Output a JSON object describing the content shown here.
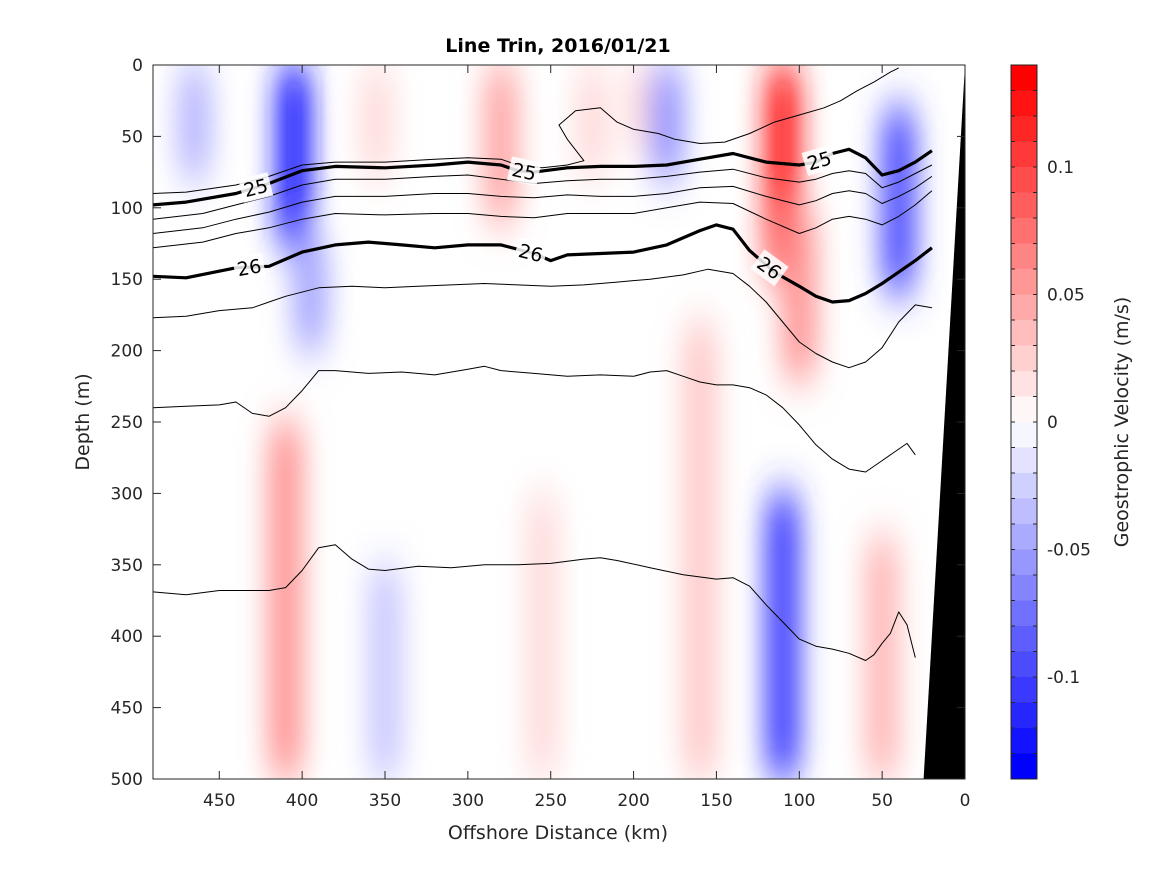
{
  "chart_data": {
    "type": "heatmap",
    "title": "Line Trin, 2016/01/21",
    "xlabel": "Offshore Distance (km)",
    "ylabel": "Depth (m)",
    "colorbar_label": "Geostrophic Velocity (m/s)",
    "x_reversed": true,
    "xlim": [
      0,
      490
    ],
    "ylim": [
      0,
      500
    ],
    "y_reversed": true,
    "x_ticks": [
      450,
      400,
      350,
      300,
      250,
      200,
      150,
      100,
      50,
      0
    ],
    "y_ticks": [
      0,
      50,
      100,
      150,
      200,
      250,
      300,
      350,
      400,
      450,
      500
    ],
    "colorbar": {
      "range": [
        -0.14,
        0.14
      ],
      "step": 0.01,
      "ticks": [
        0.1,
        0.05,
        0,
        -0.05,
        -0.1
      ],
      "tick_labels": [
        "0.1",
        "0.05",
        "0",
        "-0.05",
        "-0.1"
      ]
    },
    "velocity_features": [
      {
        "x": 465,
        "y0": 0,
        "y1": 80,
        "value": -0.04
      },
      {
        "x": 405,
        "y0": 0,
        "y1": 130,
        "value": -0.13
      },
      {
        "x": 395,
        "y0": 120,
        "y1": 200,
        "value": -0.05
      },
      {
        "x": 355,
        "y0": 0,
        "y1": 80,
        "value": 0.02
      },
      {
        "x": 280,
        "y0": 0,
        "y1": 110,
        "value": 0.05
      },
      {
        "x": 225,
        "y0": 0,
        "y1": 80,
        "value": 0.02
      },
      {
        "x": 195,
        "y0": 0,
        "y1": 60,
        "value": 0.02
      },
      {
        "x": 180,
        "y0": 0,
        "y1": 80,
        "value": -0.06
      },
      {
        "x": 110,
        "y0": 0,
        "y1": 150,
        "value": 0.13
      },
      {
        "x": 100,
        "y0": 100,
        "y1": 220,
        "value": 0.06
      },
      {
        "x": 40,
        "y0": 30,
        "y1": 160,
        "value": -0.1
      },
      {
        "x": 410,
        "y0": 250,
        "y1": 500,
        "value": 0.06
      },
      {
        "x": 350,
        "y0": 350,
        "y1": 500,
        "value": -0.03
      },
      {
        "x": 255,
        "y0": 300,
        "y1": 500,
        "value": 0.02
      },
      {
        "x": 110,
        "y0": 300,
        "y1": 500,
        "value": -0.11
      },
      {
        "x": 160,
        "y0": 180,
        "y1": 500,
        "value": 0.03
      },
      {
        "x": 50,
        "y0": 330,
        "y1": 500,
        "value": 0.04
      }
    ],
    "contours": [
      {
        "label": "25",
        "bold": true,
        "points": [
          [
            490,
            98
          ],
          [
            470,
            96
          ],
          [
            440,
            90
          ],
          [
            420,
            83
          ],
          [
            400,
            74
          ],
          [
            380,
            71
          ],
          [
            350,
            72
          ],
          [
            320,
            70
          ],
          [
            300,
            68
          ],
          [
            280,
            70
          ],
          [
            270,
            74
          ],
          [
            260,
            75
          ],
          [
            240,
            72
          ],
          [
            220,
            71
          ],
          [
            200,
            71
          ],
          [
            180,
            70
          ],
          [
            160,
            66
          ],
          [
            140,
            62
          ],
          [
            120,
            68
          ],
          [
            100,
            70
          ],
          [
            90,
            68
          ],
          [
            80,
            62
          ],
          [
            70,
            59
          ],
          [
            60,
            65
          ],
          [
            50,
            77
          ],
          [
            40,
            74
          ],
          [
            30,
            68
          ],
          [
            20,
            60
          ]
        ]
      },
      {
        "label": "26",
        "bold": true,
        "points": [
          [
            490,
            148
          ],
          [
            470,
            149
          ],
          [
            440,
            142
          ],
          [
            420,
            141
          ],
          [
            400,
            131
          ],
          [
            380,
            126
          ],
          [
            360,
            124
          ],
          [
            340,
            126
          ],
          [
            320,
            128
          ],
          [
            300,
            126
          ],
          [
            280,
            126
          ],
          [
            260,
            132
          ],
          [
            250,
            137
          ],
          [
            240,
            133
          ],
          [
            220,
            132
          ],
          [
            200,
            131
          ],
          [
            180,
            126
          ],
          [
            160,
            116
          ],
          [
            150,
            112
          ],
          [
            140,
            115
          ],
          [
            130,
            130
          ],
          [
            115,
            145
          ],
          [
            100,
            155
          ],
          [
            90,
            162
          ],
          [
            80,
            166
          ],
          [
            70,
            165
          ],
          [
            60,
            160
          ],
          [
            50,
            153
          ],
          [
            40,
            145
          ],
          [
            30,
            137
          ],
          [
            20,
            128
          ]
        ]
      },
      {
        "label": "",
        "bold": false,
        "points": [
          [
            490,
            90
          ],
          [
            470,
            89
          ],
          [
            440,
            84
          ],
          [
            420,
            78
          ],
          [
            400,
            70
          ],
          [
            380,
            68
          ],
          [
            350,
            68
          ],
          [
            320,
            66
          ],
          [
            300,
            65
          ],
          [
            280,
            66
          ],
          [
            270,
            70
          ],
          [
            255,
            72
          ],
          [
            240,
            70
          ],
          [
            230,
            67
          ],
          [
            240,
            52
          ],
          [
            245,
            42
          ],
          [
            235,
            32
          ],
          [
            220,
            30
          ],
          [
            210,
            40
          ],
          [
            200,
            45
          ],
          [
            185,
            48
          ],
          [
            175,
            52
          ],
          [
            160,
            55
          ],
          [
            145,
            54
          ],
          [
            130,
            48
          ],
          [
            115,
            40
          ],
          [
            100,
            35
          ],
          [
            85,
            30
          ],
          [
            75,
            25
          ],
          [
            65,
            18
          ],
          [
            55,
            12
          ],
          [
            45,
            5
          ],
          [
            40,
            2
          ]
        ]
      },
      {
        "label": "",
        "bold": false,
        "points": [
          [
            490,
            108
          ],
          [
            460,
            104
          ],
          [
            440,
            98
          ],
          [
            420,
            92
          ],
          [
            400,
            84
          ],
          [
            380,
            80
          ],
          [
            350,
            80
          ],
          [
            320,
            78
          ],
          [
            300,
            77
          ],
          [
            280,
            80
          ],
          [
            260,
            83
          ],
          [
            240,
            81
          ],
          [
            220,
            80
          ],
          [
            200,
            80
          ],
          [
            180,
            78
          ],
          [
            160,
            75
          ],
          [
            140,
            73
          ],
          [
            120,
            79
          ],
          [
            100,
            82
          ],
          [
            90,
            80
          ],
          [
            80,
            76
          ],
          [
            70,
            74
          ],
          [
            60,
            76
          ],
          [
            50,
            86
          ],
          [
            40,
            82
          ],
          [
            30,
            76
          ],
          [
            20,
            70
          ]
        ]
      },
      {
        "label": "",
        "bold": false,
        "points": [
          [
            490,
            118
          ],
          [
            460,
            114
          ],
          [
            440,
            108
          ],
          [
            420,
            103
          ],
          [
            400,
            96
          ],
          [
            380,
            92
          ],
          [
            350,
            92
          ],
          [
            320,
            90
          ],
          [
            300,
            90
          ],
          [
            280,
            92
          ],
          [
            260,
            93
          ],
          [
            240,
            91
          ],
          [
            220,
            92
          ],
          [
            200,
            92
          ],
          [
            180,
            90
          ],
          [
            160,
            86
          ],
          [
            140,
            85
          ],
          [
            120,
            92
          ],
          [
            100,
            98
          ],
          [
            90,
            95
          ],
          [
            80,
            90
          ],
          [
            70,
            88
          ],
          [
            60,
            90
          ],
          [
            50,
            97
          ],
          [
            40,
            92
          ],
          [
            30,
            86
          ],
          [
            20,
            78
          ]
        ]
      },
      {
        "label": "",
        "bold": false,
        "points": [
          [
            490,
            128
          ],
          [
            460,
            124
          ],
          [
            440,
            118
          ],
          [
            420,
            114
          ],
          [
            400,
            108
          ],
          [
            380,
            104
          ],
          [
            350,
            105
          ],
          [
            320,
            104
          ],
          [
            300,
            104
          ],
          [
            280,
            106
          ],
          [
            260,
            107
          ],
          [
            240,
            104
          ],
          [
            220,
            104
          ],
          [
            200,
            104
          ],
          [
            180,
            100
          ],
          [
            160,
            96
          ],
          [
            140,
            97
          ],
          [
            120,
            108
          ],
          [
            100,
            118
          ],
          [
            90,
            114
          ],
          [
            80,
            108
          ],
          [
            70,
            106
          ],
          [
            60,
            108
          ],
          [
            50,
            112
          ],
          [
            40,
            106
          ],
          [
            30,
            98
          ],
          [
            20,
            88
          ]
        ]
      },
      {
        "label": "",
        "bold": false,
        "points": [
          [
            490,
            177
          ],
          [
            470,
            176
          ],
          [
            450,
            172
          ],
          [
            430,
            170
          ],
          [
            420,
            166
          ],
          [
            410,
            162
          ],
          [
            390,
            156
          ],
          [
            370,
            155
          ],
          [
            350,
            156
          ],
          [
            330,
            155
          ],
          [
            310,
            154
          ],
          [
            290,
            153
          ],
          [
            270,
            154
          ],
          [
            250,
            155
          ],
          [
            230,
            154
          ],
          [
            210,
            152
          ],
          [
            190,
            150
          ],
          [
            170,
            147
          ],
          [
            155,
            143
          ],
          [
            140,
            146
          ],
          [
            130,
            155
          ],
          [
            120,
            166
          ],
          [
            110,
            180
          ],
          [
            100,
            194
          ],
          [
            90,
            202
          ],
          [
            80,
            208
          ],
          [
            70,
            212
          ],
          [
            60,
            208
          ],
          [
            50,
            198
          ],
          [
            40,
            180
          ],
          [
            30,
            168
          ],
          [
            20,
            170
          ]
        ]
      },
      {
        "label": "",
        "bold": false,
        "points": [
          [
            490,
            240
          ],
          [
            470,
            239
          ],
          [
            450,
            238
          ],
          [
            440,
            236
          ],
          [
            430,
            244
          ],
          [
            420,
            246
          ],
          [
            410,
            240
          ],
          [
            400,
            228
          ],
          [
            390,
            214
          ],
          [
            380,
            214
          ],
          [
            360,
            216
          ],
          [
            340,
            215
          ],
          [
            320,
            217
          ],
          [
            300,
            213
          ],
          [
            290,
            211
          ],
          [
            280,
            214
          ],
          [
            260,
            216
          ],
          [
            240,
            218
          ],
          [
            220,
            217
          ],
          [
            200,
            218
          ],
          [
            190,
            215
          ],
          [
            180,
            214
          ],
          [
            170,
            218
          ],
          [
            160,
            222
          ],
          [
            150,
            224
          ],
          [
            140,
            224
          ],
          [
            130,
            226
          ],
          [
            120,
            231
          ],
          [
            110,
            240
          ],
          [
            100,
            252
          ],
          [
            90,
            266
          ],
          [
            80,
            276
          ],
          [
            70,
            283
          ],
          [
            60,
            285
          ],
          [
            50,
            277
          ],
          [
            40,
            269
          ],
          [
            35,
            265
          ],
          [
            30,
            273
          ]
        ]
      },
      {
        "label": "",
        "bold": false,
        "points": [
          [
            490,
            369
          ],
          [
            470,
            371
          ],
          [
            450,
            368
          ],
          [
            430,
            368
          ],
          [
            420,
            368
          ],
          [
            410,
            366
          ],
          [
            400,
            354
          ],
          [
            390,
            338
          ],
          [
            380,
            336
          ],
          [
            370,
            346
          ],
          [
            360,
            353
          ],
          [
            350,
            354
          ],
          [
            330,
            351
          ],
          [
            310,
            352
          ],
          [
            290,
            350
          ],
          [
            270,
            350
          ],
          [
            250,
            349
          ],
          [
            230,
            346
          ],
          [
            220,
            345
          ],
          [
            210,
            347
          ],
          [
            190,
            352
          ],
          [
            170,
            357
          ],
          [
            150,
            360
          ],
          [
            140,
            359
          ],
          [
            130,
            365
          ],
          [
            120,
            378
          ],
          [
            110,
            390
          ],
          [
            100,
            402
          ],
          [
            90,
            407
          ],
          [
            80,
            409
          ],
          [
            70,
            412
          ],
          [
            60,
            417
          ],
          [
            55,
            413
          ],
          [
            50,
            405
          ],
          [
            45,
            398
          ],
          [
            40,
            383
          ],
          [
            35,
            392
          ],
          [
            30,
            415
          ]
        ]
      }
    ],
    "bathymetry": [
      [
        0,
        0
      ],
      [
        25,
        500
      ],
      [
        0,
        500
      ]
    ]
  }
}
